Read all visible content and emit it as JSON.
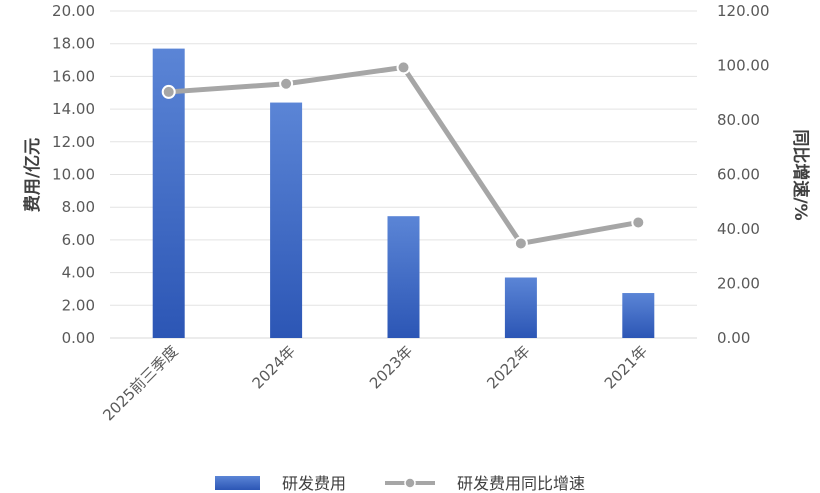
{
  "chart_data": {
    "type": "bar",
    "categories": [
      "2025前三季度",
      "2024年",
      "2023年",
      "2022年",
      "2021年"
    ],
    "series": [
      {
        "name": "研发费用",
        "type": "bar",
        "axis": "left",
        "values": [
          17.7,
          14.4,
          7.45,
          3.7,
          2.75
        ],
        "color": "#3a66c4"
      },
      {
        "name": "研发费用同比增速",
        "type": "line",
        "axis": "right",
        "values": [
          90.3,
          93.3,
          99.3,
          34.7,
          42.4
        ],
        "color": "#a6a6a6"
      }
    ],
    "y_left": {
      "label": "费用/亿元",
      "ylim": [
        0,
        20
      ],
      "ticks": [
        "0.00",
        "2.00",
        "4.00",
        "6.00",
        "8.00",
        "10.00",
        "12.00",
        "14.00",
        "16.00",
        "18.00",
        "20.00"
      ]
    },
    "y_right": {
      "label": "同比增速/%",
      "ylim": [
        0,
        120
      ],
      "ticks": [
        "0.00",
        "20.00",
        "40.00",
        "60.00",
        "80.00",
        "100.00",
        "120.00"
      ]
    },
    "grid": true,
    "legend_position": "bottom"
  }
}
